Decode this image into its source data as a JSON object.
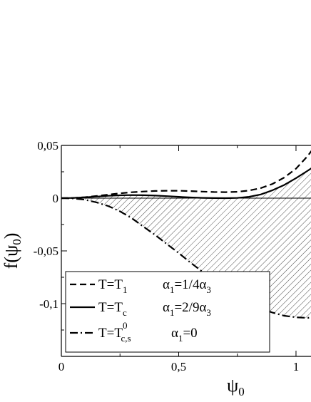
{
  "chart_data": {
    "type": "line",
    "title": "",
    "xlabel": "ψ",
    "xlabel_sub": "0",
    "ylabel": "f(ψ",
    "ylabel_sub": "0",
    "ylabel_close": ")",
    "xlim": [
      0,
      1.07
    ],
    "ylim": [
      -0.15,
      0.05
    ],
    "x_ticks": [
      {
        "v": 0,
        "label": "0"
      },
      {
        "v": 0.5,
        "label": "0,5"
      },
      {
        "v": 1,
        "label": "1"
      }
    ],
    "y_ticks": [
      {
        "v": 0.05,
        "label": "0,05"
      },
      {
        "v": 0,
        "label": "0"
      },
      {
        "v": -0.05,
        "label": "-0,05"
      },
      {
        "v": -0.1,
        "label": "-0,1"
      }
    ],
    "grid": false,
    "legend_position": "bottom-left",
    "hatched_region": "between T=Tc curve and T=Tc,s curve",
    "series": [
      {
        "style": "dashed",
        "legend": {
          "t_main": "T=T",
          "t_sub": "1",
          "t_sup": "",
          "a_main": "α",
          "a_sub": "1",
          "a_rest": "=1/4α",
          "a_sub2": "3"
        },
        "x": [
          0,
          0.05,
          0.1,
          0.15,
          0.2,
          0.25,
          0.3,
          0.35,
          0.4,
          0.45,
          0.5,
          0.55,
          0.6,
          0.65,
          0.7,
          0.75,
          0.8,
          0.85,
          0.9,
          0.95,
          1.0,
          1.05,
          1.07
        ],
        "y": [
          0,
          0.0002,
          0.0009,
          0.002,
          0.0033,
          0.0046,
          0.0056,
          0.0063,
          0.0068,
          0.007,
          0.007,
          0.0067,
          0.0062,
          0.0058,
          0.0057,
          0.006,
          0.0072,
          0.0095,
          0.0135,
          0.0195,
          0.028,
          0.04,
          0.046
        ]
      },
      {
        "style": "solid",
        "legend": {
          "t_main": "T=T",
          "t_sub": "c",
          "t_sup": "",
          "a_main": "α",
          "a_sub": "1",
          "a_rest": "=2/9α",
          "a_sub2": "3"
        },
        "x": [
          0,
          0.05,
          0.1,
          0.15,
          0.2,
          0.25,
          0.3,
          0.35,
          0.4,
          0.45,
          0.5,
          0.55,
          0.6,
          0.65,
          0.7,
          0.75,
          0.8,
          0.85,
          0.9,
          0.95,
          1.0,
          1.05,
          1.07
        ],
        "y": [
          0,
          0.0002,
          0.0008,
          0.0015,
          0.0022,
          0.0027,
          0.0029,
          0.0028,
          0.0024,
          0.0019,
          0.0013,
          0.0007,
          0.0003,
          0.0001,
          0,
          0.0002,
          0.0013,
          0.0035,
          0.0075,
          0.0125,
          0.019,
          0.026,
          0.029
        ]
      },
      {
        "style": "dashdot",
        "legend": {
          "t_main": "T=T",
          "t_sub": "c,s",
          "t_sup": "0",
          "a_main": "α",
          "a_sub": "1",
          "a_rest": "=0",
          "a_sub2": ""
        },
        "x": [
          0,
          0.05,
          0.1,
          0.15,
          0.2,
          0.25,
          0.3,
          0.35,
          0.4,
          0.45,
          0.5,
          0.55,
          0.6,
          0.65,
          0.7,
          0.75,
          0.8,
          0.85,
          0.9,
          0.95,
          1.0,
          1.05,
          1.07
        ],
        "y": [
          0,
          -0.0003,
          -0.0015,
          -0.004,
          -0.0075,
          -0.0125,
          -0.019,
          -0.027,
          -0.035,
          -0.0435,
          -0.052,
          -0.061,
          -0.0695,
          -0.078,
          -0.086,
          -0.093,
          -0.0995,
          -0.1045,
          -0.1085,
          -0.1115,
          -0.113,
          -0.1135,
          -0.113
        ]
      }
    ]
  }
}
